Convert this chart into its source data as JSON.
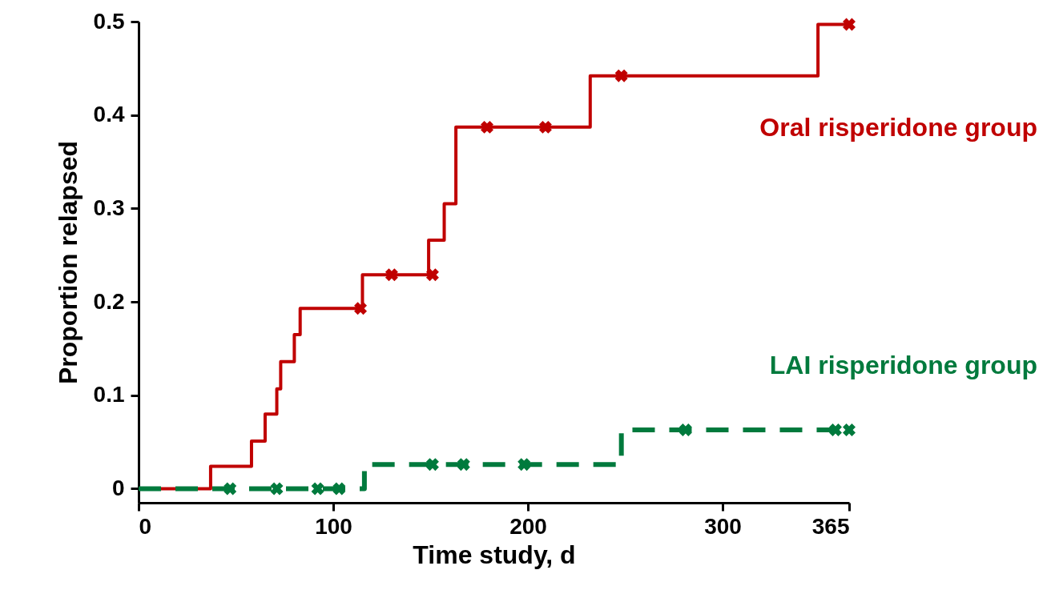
{
  "chart_data": {
    "type": "step",
    "xlabel": "Time study, d",
    "ylabel": "Proportion relapsed",
    "xlim": [
      0,
      365
    ],
    "xticks": [
      0,
      100,
      200,
      300,
      365
    ],
    "ylim": [
      -0.015,
      0.5
    ],
    "yticks": [
      0,
      0.1,
      0.2,
      0.3,
      0.4,
      0.5
    ],
    "grid": false,
    "series": [
      {
        "name": "Oral risperidone group",
        "color": "#c00000",
        "line_style": "solid",
        "marker": "none",
        "x": [
          0,
          37,
          58,
          65,
          71,
          73,
          80,
          83,
          115,
          149,
          157,
          163,
          232,
          349,
          365
        ],
        "values": [
          0,
          0.024,
          0.051,
          0.08,
          0.107,
          0.136,
          0.165,
          0.193,
          0.229,
          0.266,
          0.305,
          0.387,
          0.442,
          0.497,
          0.497
        ]
      },
      {
        "name": "LAI risperidone group",
        "color": "#007a3d",
        "line_style": "dashed",
        "marker": "none",
        "x": [
          0,
          116,
          248,
          365
        ],
        "values": [
          0,
          0.026,
          0.063,
          0.063
        ]
      },
      {
        "type": "scatter",
        "color": "#c00000",
        "marker": "cross",
        "x": [
          114,
          130,
          151,
          179,
          209,
          248,
          365
        ],
        "values": [
          0.193,
          0.229,
          0.229,
          0.387,
          0.387,
          0.442,
          0.497
        ]
      },
      {
        "type": "scatter",
        "color": "#007a3d",
        "marker": "cross",
        "x": [
          47,
          71,
          92,
          103,
          151,
          167,
          198,
          281,
          358,
          365
        ],
        "values": [
          0,
          0,
          0,
          0,
          0.026,
          0.026,
          0.026,
          0.063,
          0.063,
          0.063
        ]
      }
    ]
  }
}
